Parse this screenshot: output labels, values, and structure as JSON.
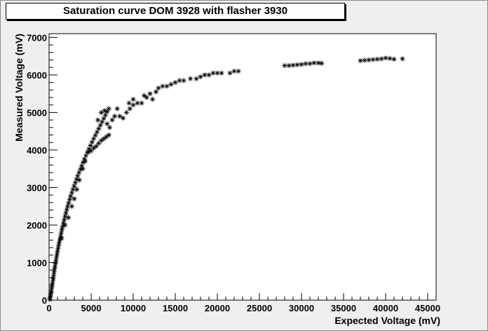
{
  "chart_data": {
    "type": "scatter",
    "title": "Saturation curve DOM 3928 with flasher 3930",
    "xlabel": "Expected Voltage (mV)",
    "ylabel": "Measured Voltage (mV)",
    "xlim": [
      0,
      46000
    ],
    "ylim": [
      0,
      7100
    ],
    "x_ticks": [
      0,
      5000,
      10000,
      15000,
      20000,
      25000,
      30000,
      35000,
      40000,
      45000
    ],
    "y_ticks": [
      0,
      1000,
      2000,
      3000,
      4000,
      5000,
      6000,
      7000
    ],
    "grid": false,
    "marker": "asterisk",
    "points": [
      [
        80,
        20
      ],
      [
        120,
        60
      ],
      [
        160,
        110
      ],
      [
        200,
        170
      ],
      [
        250,
        230
      ],
      [
        300,
        300
      ],
      [
        350,
        370
      ],
      [
        400,
        440
      ],
      [
        450,
        520
      ],
      [
        500,
        590
      ],
      [
        550,
        670
      ],
      [
        600,
        750
      ],
      [
        650,
        830
      ],
      [
        700,
        900
      ],
      [
        760,
        980
      ],
      [
        820,
        1060
      ],
      [
        880,
        1140
      ],
      [
        940,
        1220
      ],
      [
        1000,
        1300
      ],
      [
        1070,
        1380
      ],
      [
        1140,
        1460
      ],
      [
        1210,
        1540
      ],
      [
        1280,
        1620
      ],
      [
        1360,
        1700
      ],
      [
        1440,
        1790
      ],
      [
        1520,
        1880
      ],
      [
        1600,
        1960
      ],
      [
        1700,
        2050
      ],
      [
        1800,
        2140
      ],
      [
        1900,
        2230
      ],
      [
        2000,
        2320
      ],
      [
        2100,
        2410
      ],
      [
        2200,
        2500
      ],
      [
        2320,
        2590
      ],
      [
        2440,
        2680
      ],
      [
        2560,
        2770
      ],
      [
        2700,
        2860
      ],
      [
        2840,
        2950
      ],
      [
        2980,
        3040
      ],
      [
        3120,
        3130
      ],
      [
        3260,
        3220
      ],
      [
        3400,
        3310
      ],
      [
        3560,
        3400
      ],
      [
        3720,
        3490
      ],
      [
        3880,
        3580
      ],
      [
        4040,
        3670
      ],
      [
        4200,
        3760
      ],
      [
        4380,
        3850
      ],
      [
        4560,
        3940
      ],
      [
        4740,
        4030
      ],
      [
        4920,
        4120
      ],
      [
        5100,
        4210
      ],
      [
        5300,
        4300
      ],
      [
        5500,
        4390
      ],
      [
        5700,
        4480
      ],
      [
        5900,
        4570
      ],
      [
        6100,
        4660
      ],
      [
        6300,
        4750
      ],
      [
        6500,
        4840
      ],
      [
        6700,
        4930
      ],
      [
        6900,
        5020
      ],
      [
        7100,
        5100
      ],
      [
        1500,
        1650
      ],
      [
        1900,
        2000
      ],
      [
        2300,
        2200
      ],
      [
        2700,
        2500
      ],
      [
        3000,
        2700
      ],
      [
        3300,
        2950
      ],
      [
        3600,
        3200
      ],
      [
        4000,
        3500
      ],
      [
        4300,
        3700
      ],
      [
        4700,
        3950
      ],
      [
        5000,
        3980
      ],
      [
        5300,
        4050
      ],
      [
        5600,
        4100
      ],
      [
        5900,
        4180
      ],
      [
        6200,
        4250
      ],
      [
        6500,
        4300
      ],
      [
        6800,
        4350
      ],
      [
        7100,
        4400
      ],
      [
        5800,
        4800
      ],
      [
        6200,
        5000
      ],
      [
        6600,
        5050
      ],
      [
        6900,
        4700
      ],
      [
        7200,
        4600
      ],
      [
        7500,
        4800
      ],
      [
        7800,
        4900
      ],
      [
        8100,
        5100
      ],
      [
        8400,
        4900
      ],
      [
        8800,
        4850
      ],
      [
        9200,
        5000
      ],
      [
        9600,
        5100
      ],
      [
        10000,
        5200
      ],
      [
        10500,
        5250
      ],
      [
        9500,
        5250
      ],
      [
        10000,
        5350
      ],
      [
        11000,
        5250
      ],
      [
        11300,
        5450
      ],
      [
        11600,
        5400
      ],
      [
        12000,
        5500
      ],
      [
        12300,
        5350
      ],
      [
        12700,
        5550
      ],
      [
        13000,
        5650
      ],
      [
        13500,
        5700
      ],
      [
        14000,
        5700
      ],
      [
        14500,
        5750
      ],
      [
        15000,
        5800
      ],
      [
        15500,
        5850
      ],
      [
        16000,
        5850
      ],
      [
        16800,
        5900
      ],
      [
        17500,
        5900
      ],
      [
        18000,
        5950
      ],
      [
        18500,
        6000
      ],
      [
        19000,
        6000
      ],
      [
        19500,
        6050
      ],
      [
        20000,
        6050
      ],
      [
        20500,
        6050
      ],
      [
        21500,
        6050
      ],
      [
        22000,
        6100
      ],
      [
        22500,
        6100
      ],
      [
        28000,
        6250
      ],
      [
        28500,
        6250
      ],
      [
        29000,
        6260
      ],
      [
        29500,
        6270
      ],
      [
        30000,
        6280
      ],
      [
        30500,
        6300
      ],
      [
        31000,
        6300
      ],
      [
        31500,
        6320
      ],
      [
        32000,
        6320
      ],
      [
        32400,
        6310
      ],
      [
        37000,
        6380
      ],
      [
        37500,
        6390
      ],
      [
        38000,
        6400
      ],
      [
        38500,
        6410
      ],
      [
        39000,
        6420
      ],
      [
        39500,
        6430
      ],
      [
        40000,
        6450
      ],
      [
        40500,
        6440
      ],
      [
        41000,
        6420
      ],
      [
        42000,
        6430
      ]
    ]
  }
}
